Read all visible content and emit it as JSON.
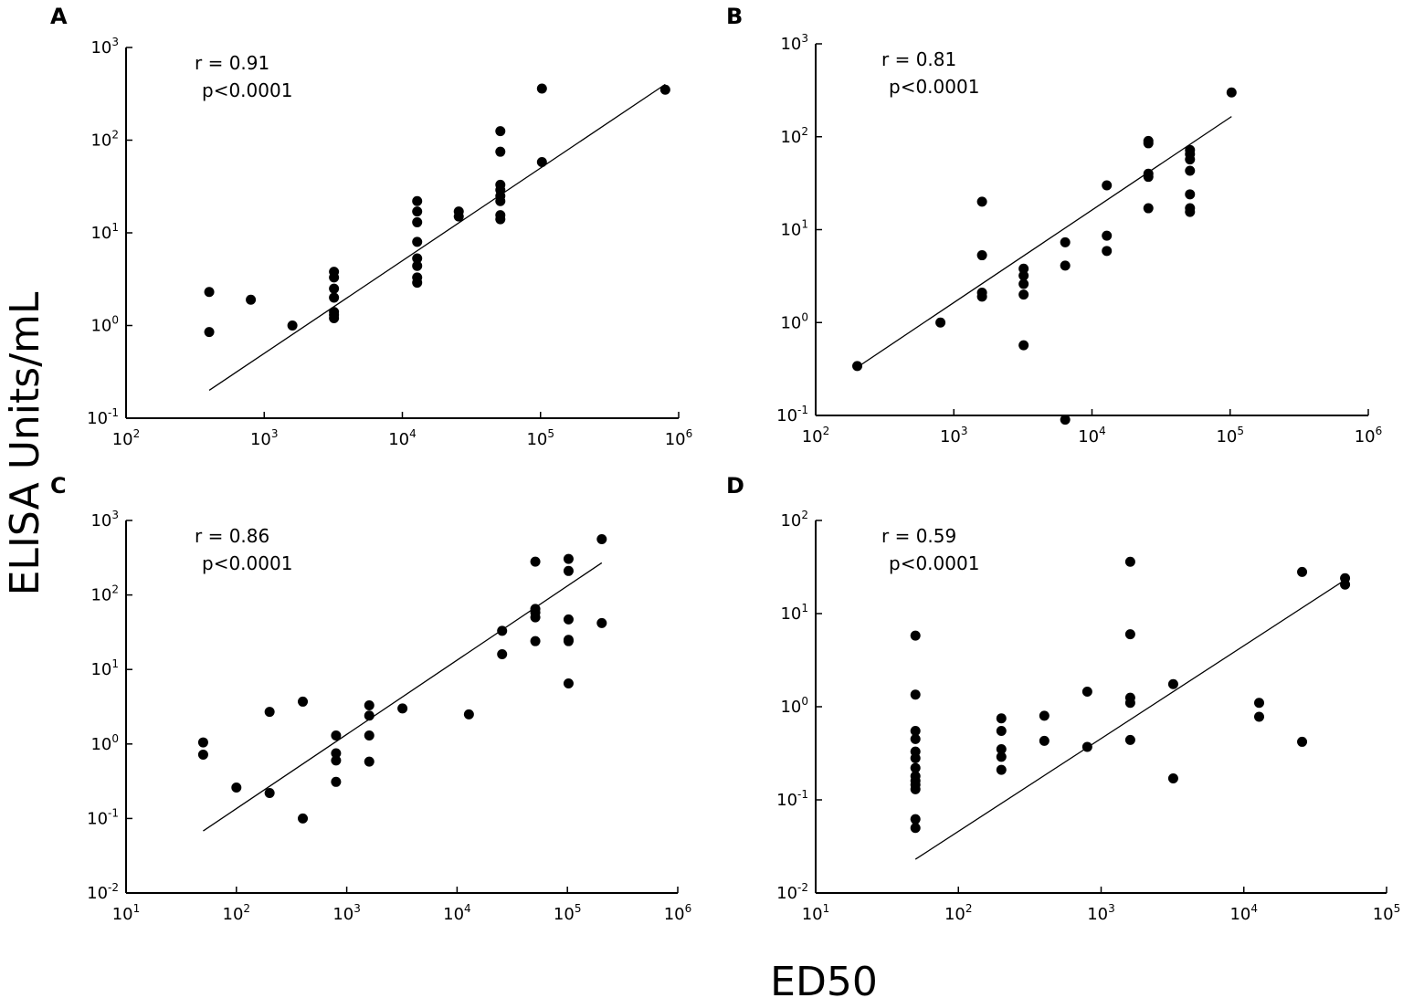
{
  "figure": {
    "ylabel": "ELISA Units/mL",
    "xlabel": "ED50"
  },
  "chart_data": [
    {
      "panel": "A",
      "type": "scatter",
      "xscale": "log",
      "yscale": "log",
      "xlim": [
        100,
        1000000
      ],
      "ylim": [
        0.1,
        1000
      ],
      "x_ticks": [
        {
          "base": "10",
          "exp": "2"
        },
        {
          "base": "10",
          "exp": "3"
        },
        {
          "base": "10",
          "exp": "4"
        },
        {
          "base": "10",
          "exp": "5"
        },
        {
          "base": "10",
          "exp": "6"
        }
      ],
      "y_ticks": [
        {
          "base": "10",
          "exp": "-1"
        },
        {
          "base": "10",
          "exp": "0"
        },
        {
          "base": "10",
          "exp": "1"
        },
        {
          "base": "10",
          "exp": "2"
        },
        {
          "base": "10",
          "exp": "3"
        }
      ],
      "r_text": "r = 0.91",
      "p_text": "p<0.0001",
      "fit_line": {
        "x": [
          400,
          800000
        ],
        "y": [
          0.2,
          400
        ]
      },
      "points": [
        {
          "x": 400,
          "y": 2.3
        },
        {
          "x": 400,
          "y": 0.85
        },
        {
          "x": 800,
          "y": 1.9
        },
        {
          "x": 1600,
          "y": 1.0
        },
        {
          "x": 3200,
          "y": 3.8
        },
        {
          "x": 3200,
          "y": 3.3
        },
        {
          "x": 3200,
          "y": 2.5
        },
        {
          "x": 3200,
          "y": 2.0
        },
        {
          "x": 3200,
          "y": 1.4
        },
        {
          "x": 3200,
          "y": 1.3
        },
        {
          "x": 3200,
          "y": 1.2
        },
        {
          "x": 12800,
          "y": 22
        },
        {
          "x": 12800,
          "y": 17
        },
        {
          "x": 12800,
          "y": 13
        },
        {
          "x": 12800,
          "y": 8
        },
        {
          "x": 12800,
          "y": 5.3
        },
        {
          "x": 12800,
          "y": 4.4
        },
        {
          "x": 12800,
          "y": 3.3
        },
        {
          "x": 12800,
          "y": 2.9
        },
        {
          "x": 25600,
          "y": 17
        },
        {
          "x": 25600,
          "y": 15
        },
        {
          "x": 51200,
          "y": 125
        },
        {
          "x": 51200,
          "y": 75
        },
        {
          "x": 51200,
          "y": 33
        },
        {
          "x": 51200,
          "y": 29
        },
        {
          "x": 51200,
          "y": 25
        },
        {
          "x": 51200,
          "y": 22
        },
        {
          "x": 51200,
          "y": 15.5
        },
        {
          "x": 51200,
          "y": 14
        },
        {
          "x": 102400,
          "y": 360
        },
        {
          "x": 102400,
          "y": 58
        },
        {
          "x": 800000,
          "y": 350
        }
      ]
    },
    {
      "panel": "B",
      "type": "scatter",
      "xscale": "log",
      "yscale": "log",
      "xlim": [
        100,
        1000000
      ],
      "ylim": [
        0.1,
        1000
      ],
      "x_ticks": [
        {
          "base": "10",
          "exp": "2"
        },
        {
          "base": "10",
          "exp": "3"
        },
        {
          "base": "10",
          "exp": "4"
        },
        {
          "base": "10",
          "exp": "5"
        },
        {
          "base": "10",
          "exp": "6"
        }
      ],
      "y_ticks": [
        {
          "base": "10",
          "exp": "-1"
        },
        {
          "base": "10",
          "exp": "0"
        },
        {
          "base": "10",
          "exp": "1"
        },
        {
          "base": "10",
          "exp": "2"
        },
        {
          "base": "10",
          "exp": "3"
        }
      ],
      "r_text": "r = 0.81",
      "p_text": "p<0.0001",
      "fit_line": {
        "x": [
          200,
          102400
        ],
        "y": [
          0.33,
          165
        ]
      },
      "points": [
        {
          "x": 200,
          "y": 0.34
        },
        {
          "x": 800,
          "y": 1.0
        },
        {
          "x": 1600,
          "y": 20
        },
        {
          "x": 1600,
          "y": 5.3
        },
        {
          "x": 1600,
          "y": 2.1
        },
        {
          "x": 1600,
          "y": 1.9
        },
        {
          "x": 3200,
          "y": 3.8
        },
        {
          "x": 3200,
          "y": 3.2
        },
        {
          "x": 3200,
          "y": 2.6
        },
        {
          "x": 3200,
          "y": 2.0
        },
        {
          "x": 3200,
          "y": 0.57
        },
        {
          "x": 6400,
          "y": 7.3
        },
        {
          "x": 6400,
          "y": 4.1
        },
        {
          "x": 6400,
          "y": 0.09
        },
        {
          "x": 12800,
          "y": 30
        },
        {
          "x": 12800,
          "y": 8.6
        },
        {
          "x": 12800,
          "y": 5.9
        },
        {
          "x": 25600,
          "y": 90
        },
        {
          "x": 25600,
          "y": 85
        },
        {
          "x": 25600,
          "y": 40
        },
        {
          "x": 25600,
          "y": 37
        },
        {
          "x": 25600,
          "y": 17
        },
        {
          "x": 51200,
          "y": 72
        },
        {
          "x": 51200,
          "y": 65
        },
        {
          "x": 51200,
          "y": 57
        },
        {
          "x": 51200,
          "y": 43
        },
        {
          "x": 51200,
          "y": 24
        },
        {
          "x": 51200,
          "y": 17
        },
        {
          "x": 51200,
          "y": 15.5
        },
        {
          "x": 102400,
          "y": 300
        }
      ]
    },
    {
      "panel": "C",
      "type": "scatter",
      "xscale": "log",
      "yscale": "log",
      "xlim": [
        10,
        1000000
      ],
      "ylim": [
        0.01,
        1000
      ],
      "x_ticks": [
        {
          "base": "10",
          "exp": "1"
        },
        {
          "base": "10",
          "exp": "2"
        },
        {
          "base": "10",
          "exp": "3"
        },
        {
          "base": "10",
          "exp": "4"
        },
        {
          "base": "10",
          "exp": "5"
        },
        {
          "base": "10",
          "exp": "6"
        }
      ],
      "y_ticks": [
        {
          "base": "10",
          "exp": "-2"
        },
        {
          "base": "10",
          "exp": "-1"
        },
        {
          "base": "10",
          "exp": "0"
        },
        {
          "base": "10",
          "exp": "1"
        },
        {
          "base": "10",
          "exp": "2"
        },
        {
          "base": "10",
          "exp": "3"
        }
      ],
      "r_text": "r = 0.86",
      "p_text": "p<0.0001",
      "fit_line": {
        "x": [
          50,
          204800
        ],
        "y": [
          0.068,
          270
        ]
      },
      "points": [
        {
          "x": 50,
          "y": 1.05
        },
        {
          "x": 50,
          "y": 0.72
        },
        {
          "x": 100,
          "y": 0.26
        },
        {
          "x": 200,
          "y": 2.7
        },
        {
          "x": 200,
          "y": 0.22
        },
        {
          "x": 400,
          "y": 3.7
        },
        {
          "x": 400,
          "y": 0.1
        },
        {
          "x": 800,
          "y": 1.3
        },
        {
          "x": 800,
          "y": 0.75
        },
        {
          "x": 800,
          "y": 0.6
        },
        {
          "x": 800,
          "y": 0.31
        },
        {
          "x": 1600,
          "y": 3.3
        },
        {
          "x": 1600,
          "y": 2.4
        },
        {
          "x": 1600,
          "y": 1.3
        },
        {
          "x": 1600,
          "y": 0.58
        },
        {
          "x": 3200,
          "y": 3.0
        },
        {
          "x": 12800,
          "y": 2.5
        },
        {
          "x": 25600,
          "y": 33
        },
        {
          "x": 25600,
          "y": 16
        },
        {
          "x": 51200,
          "y": 280
        },
        {
          "x": 51200,
          "y": 65
        },
        {
          "x": 51200,
          "y": 58
        },
        {
          "x": 51200,
          "y": 50
        },
        {
          "x": 51200,
          "y": 24
        },
        {
          "x": 102400,
          "y": 305
        },
        {
          "x": 102400,
          "y": 210
        },
        {
          "x": 102400,
          "y": 47
        },
        {
          "x": 102400,
          "y": 25
        },
        {
          "x": 102400,
          "y": 24
        },
        {
          "x": 102400,
          "y": 6.5
        },
        {
          "x": 204800,
          "y": 560
        },
        {
          "x": 204800,
          "y": 42
        }
      ]
    },
    {
      "panel": "D",
      "type": "scatter",
      "xscale": "log",
      "yscale": "log",
      "xlim": [
        10,
        100000
      ],
      "ylim": [
        0.01,
        100
      ],
      "x_ticks": [
        {
          "base": "10",
          "exp": "1"
        },
        {
          "base": "10",
          "exp": "2"
        },
        {
          "base": "10",
          "exp": "3"
        },
        {
          "base": "10",
          "exp": "4"
        },
        {
          "base": "10",
          "exp": "5"
        }
      ],
      "y_ticks": [
        {
          "base": "10",
          "exp": "-2"
        },
        {
          "base": "10",
          "exp": "-1"
        },
        {
          "base": "10",
          "exp": "0"
        },
        {
          "base": "10",
          "exp": "1"
        },
        {
          "base": "10",
          "exp": "2"
        }
      ],
      "r_text": "r = 0.59",
      "p_text": "p<0.0001",
      "fit_line": {
        "x": [
          50,
          51200
        ],
        "y": [
          0.023,
          23
        ]
      },
      "points": [
        {
          "x": 50,
          "y": 5.8
        },
        {
          "x": 50,
          "y": 1.35
        },
        {
          "x": 50,
          "y": 0.55
        },
        {
          "x": 50,
          "y": 0.45
        },
        {
          "x": 50,
          "y": 0.33
        },
        {
          "x": 50,
          "y": 0.28
        },
        {
          "x": 50,
          "y": 0.22
        },
        {
          "x": 50,
          "y": 0.18
        },
        {
          "x": 50,
          "y": 0.16
        },
        {
          "x": 50,
          "y": 0.145
        },
        {
          "x": 50,
          "y": 0.13
        },
        {
          "x": 50,
          "y": 0.062
        },
        {
          "x": 50,
          "y": 0.05
        },
        {
          "x": 200,
          "y": 0.75
        },
        {
          "x": 200,
          "y": 0.55
        },
        {
          "x": 200,
          "y": 0.35
        },
        {
          "x": 200,
          "y": 0.29
        },
        {
          "x": 200,
          "y": 0.21
        },
        {
          "x": 400,
          "y": 0.8
        },
        {
          "x": 400,
          "y": 0.43
        },
        {
          "x": 800,
          "y": 1.45
        },
        {
          "x": 800,
          "y": 0.37
        },
        {
          "x": 1600,
          "y": 36
        },
        {
          "x": 1600,
          "y": 6.0
        },
        {
          "x": 1600,
          "y": 1.25
        },
        {
          "x": 1600,
          "y": 1.1
        },
        {
          "x": 1600,
          "y": 0.44
        },
        {
          "x": 3200,
          "y": 1.75
        },
        {
          "x": 3200,
          "y": 0.17
        },
        {
          "x": 12800,
          "y": 1.1
        },
        {
          "x": 12800,
          "y": 0.78
        },
        {
          "x": 25600,
          "y": 28
        },
        {
          "x": 25600,
          "y": 0.42
        },
        {
          "x": 51200,
          "y": 24
        },
        {
          "x": 51200,
          "y": 20.5
        }
      ]
    }
  ]
}
